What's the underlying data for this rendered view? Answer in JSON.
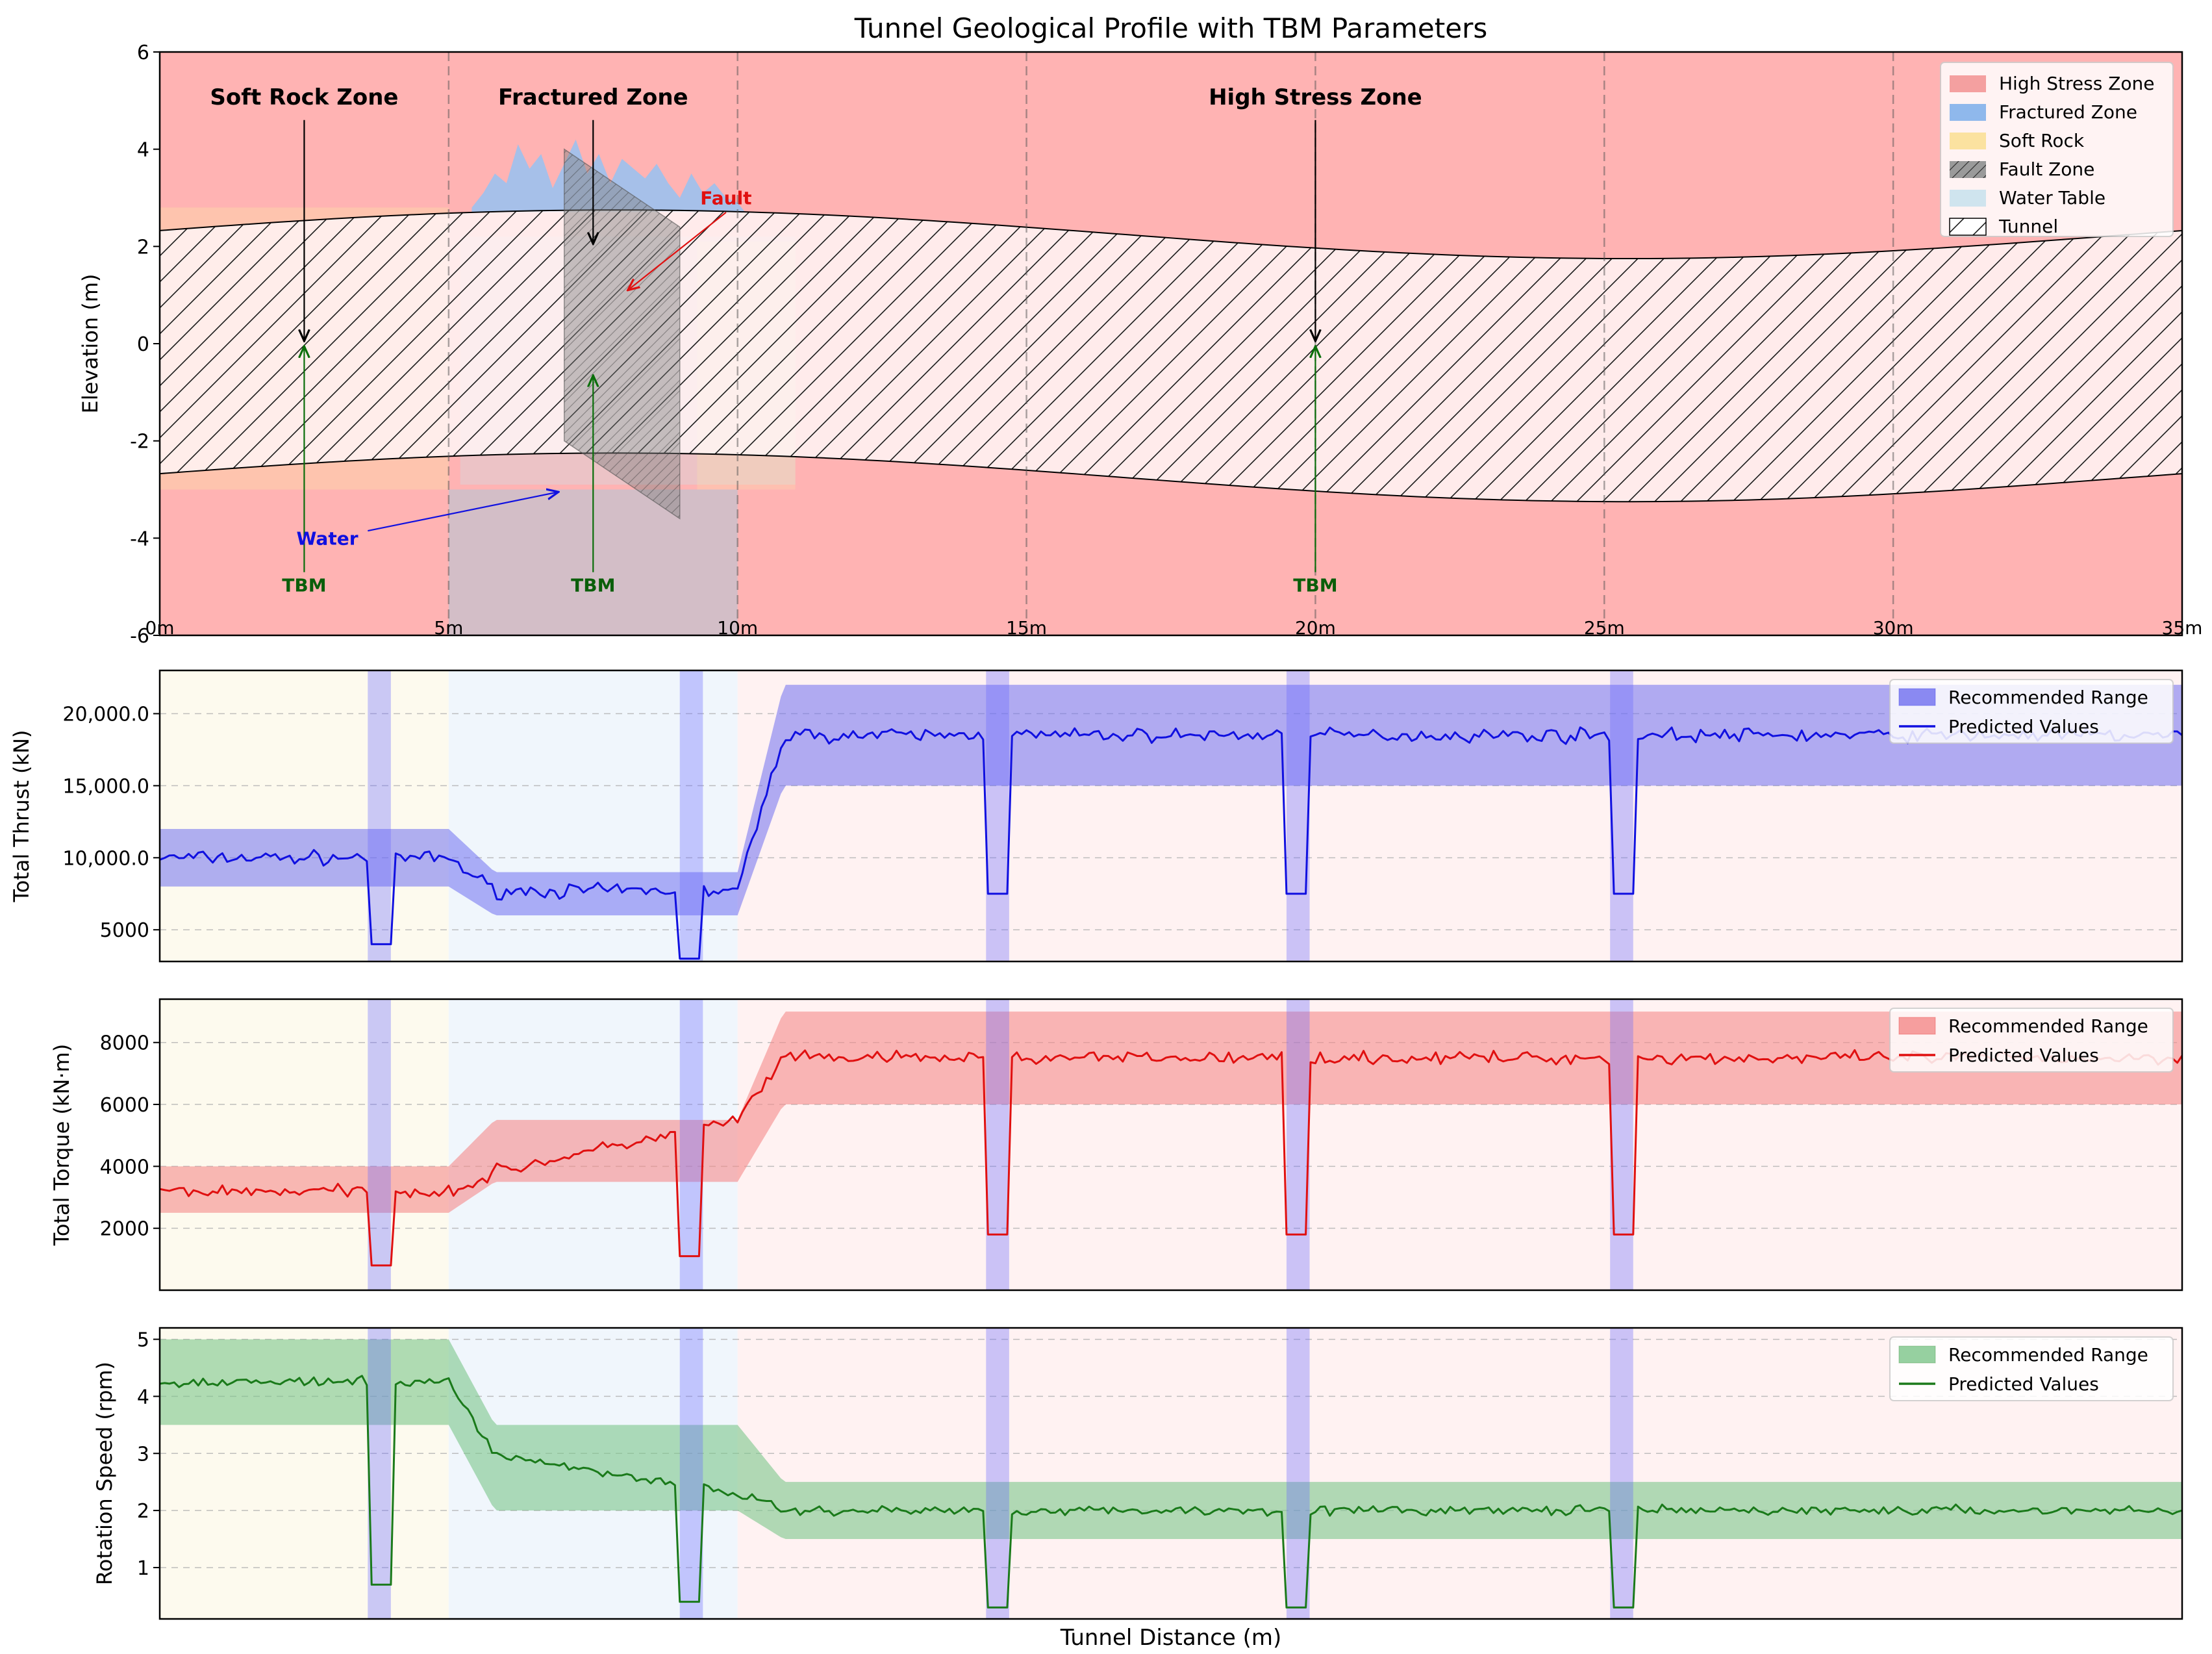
{
  "figure": {
    "title": "Tunnel Geological Profile with TBM Parameters",
    "xlabel": "Tunnel Distance (m)"
  },
  "colors": {
    "high_stress": "#ffb3b3",
    "fractured": "#9cc1ee",
    "soft_rock": "#fbe6a6",
    "fault": "#808080",
    "water": "#c9e2ec",
    "blue_band": "#6a6aff",
    "thrust": "#1010e0",
    "torque": "#e01010",
    "speed": "#1a7a1a"
  },
  "chart_data": [
    {
      "type": "area",
      "name": "profile",
      "ylabel": "Elevation (m)",
      "xlim": [
        0,
        35
      ],
      "ylim": [
        -6,
        6
      ],
      "yticks": [
        -6,
        -4,
        -2,
        0,
        2,
        4,
        6
      ],
      "xticks": [
        {
          "value": 0,
          "label": "0m"
        },
        {
          "value": 5,
          "label": "5m"
        },
        {
          "value": 10,
          "label": "10m"
        },
        {
          "value": 15,
          "label": "15m"
        },
        {
          "value": 20,
          "label": "20m"
        },
        {
          "value": 25,
          "label": "25m"
        },
        {
          "value": 30,
          "label": "30m"
        },
        {
          "value": 35,
          "label": "35m"
        }
      ],
      "tunnel": {
        "center_offset": 0.2,
        "center_amplitude": 0.5,
        "half_height": 2.5
      },
      "fractured_cloud": {
        "x": [
          5.4,
          5.6,
          5.8,
          6.0,
          6.2,
          6.4,
          6.6,
          6.8,
          7.0,
          7.2,
          7.4,
          7.6,
          7.8,
          8.0,
          8.2,
          8.4,
          8.6,
          8.8,
          9.0,
          9.2,
          9.4,
          9.6,
          9.8,
          10.0,
          10.2
        ],
        "y": [
          2.8,
          3.1,
          3.5,
          3.3,
          4.1,
          3.6,
          3.9,
          3.2,
          3.7,
          4.2,
          3.5,
          3.9,
          3.3,
          3.8,
          3.6,
          3.4,
          3.7,
          3.3,
          3.0,
          3.5,
          3.1,
          3.3,
          3.0,
          2.9,
          2.6
        ]
      },
      "fault_polygon": {
        "x": [
          7.0,
          9.0,
          9.0,
          7.0
        ],
        "y": [
          4.0,
          2.4,
          -3.6,
          -2.0
        ]
      },
      "fault_label": "Fault",
      "water_label": "Water",
      "zone_labels": [
        {
          "text": "Soft Rock Zone",
          "x": 2.5,
          "y": 5.0
        },
        {
          "text": "Fractured Zone",
          "x": 7.5,
          "y": 5.0
        },
        {
          "text": "High Stress Zone",
          "x": 20.0,
          "y": 5.0
        }
      ],
      "tbm_labels": [
        {
          "text": "TBM",
          "x": 2.5
        },
        {
          "text": "TBM",
          "x": 7.5
        },
        {
          "text": "TBM",
          "x": 20.0
        }
      ],
      "legend": {
        "position": "upper-right",
        "entries": [
          "High Stress Zone",
          "Fractured Zone",
          "Soft Rock",
          "Fault Zone",
          "Water Table",
          "Tunnel"
        ]
      }
    },
    {
      "type": "line",
      "name": "thrust",
      "ylabel": "Total Thrust (kN)",
      "ylim": [
        2800,
        23000
      ],
      "yticks": [
        {
          "value": 5000,
          "label": "5000"
        },
        {
          "value": 10000,
          "label": "10,000.0"
        },
        {
          "value": 15000,
          "label": "15,000.0"
        },
        {
          "value": 20000,
          "label": "20,000.0"
        }
      ],
      "range": {
        "soft": [
          8000,
          12000
        ],
        "fractured": [
          6000,
          9000
        ],
        "high": [
          15000,
          22000
        ]
      },
      "predicted": {
        "soft": 10000,
        "fractured": 7700,
        "high": 18500,
        "noise": 700,
        "stop_soft": 4000,
        "stop_fractured": 3000,
        "stop_high": 7500
      },
      "legend": {
        "position": "upper-right",
        "entries": [
          "Recommended Range",
          "Predicted Values"
        ]
      }
    },
    {
      "type": "line",
      "name": "torque",
      "ylabel": "Total Torque (kN·m)",
      "ylim": [
        0,
        9400
      ],
      "yticks": [
        {
          "value": 2000,
          "label": "2000"
        },
        {
          "value": 4000,
          "label": "4000"
        },
        {
          "value": 6000,
          "label": "6000"
        },
        {
          "value": 8000,
          "label": "8000"
        }
      ],
      "range": {
        "soft": [
          2500,
          4000
        ],
        "fractured": [
          3500,
          5500
        ],
        "high": [
          6000,
          9000
        ]
      },
      "predicted": {
        "soft": 3200,
        "fractured_start": 3500,
        "fractured_end": 5500,
        "high": 7500,
        "noise": 300,
        "stop_soft": 800,
        "stop_fractured": 1100,
        "stop_high": 1800
      },
      "legend": {
        "position": "upper-right",
        "entries": [
          "Recommended Range",
          "Predicted Values"
        ]
      }
    },
    {
      "type": "line",
      "name": "speed",
      "ylabel": "Rotation Speed (rpm)",
      "ylim": [
        0.1,
        5.2
      ],
      "yticks": [
        {
          "value": 1,
          "label": "1"
        },
        {
          "value": 2,
          "label": "2"
        },
        {
          "value": 3,
          "label": "3"
        },
        {
          "value": 4,
          "label": "4"
        },
        {
          "value": 5,
          "label": "5"
        }
      ],
      "range": {
        "soft": [
          3.5,
          5.0
        ],
        "fractured": [
          2.0,
          3.5
        ],
        "high": [
          1.5,
          2.5
        ]
      },
      "predicted": {
        "soft": 4.25,
        "fractured_start": 3.1,
        "fractured_end": 2.3,
        "high": 2.0,
        "noise": 0.12,
        "stop_soft": 0.7,
        "stop_fractured": 0.4,
        "stop_high": 0.3
      },
      "legend": {
        "position": "upper-right",
        "entries": [
          "Recommended Range",
          "Predicted Values"
        ]
      }
    }
  ],
  "zones": {
    "soft_rock": [
      0,
      5
    ],
    "fractured": [
      5,
      10
    ],
    "high_stress": [
      10,
      35
    ]
  },
  "stoppages": [
    {
      "start": 3.6,
      "end": 4.0
    },
    {
      "start": 9.0,
      "end": 9.4
    },
    {
      "start": 14.3,
      "end": 14.7
    },
    {
      "start": 19.5,
      "end": 19.9
    },
    {
      "start": 25.1,
      "end": 25.5
    }
  ]
}
